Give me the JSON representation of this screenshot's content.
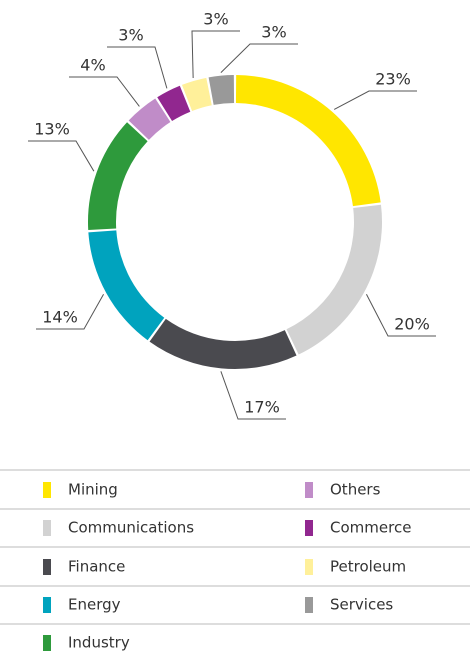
{
  "chart_data": {
    "type": "donut",
    "categories": [
      "Mining",
      "Communications",
      "Finance",
      "Energy",
      "Industry",
      "Others",
      "Commerce",
      "Petroleum",
      "Services"
    ],
    "values": [
      23,
      20,
      17,
      14,
      13,
      4,
      3,
      3,
      3
    ],
    "value_labels": [
      "23%",
      "20%",
      "17%",
      "14%",
      "13%",
      "4%",
      "3%",
      "3%",
      "3%"
    ],
    "colors": [
      "#ffe600",
      "#d2d2d2",
      "#4a4a4f",
      "#00a3be",
      "#2e9a3c",
      "#c08cc8",
      "#91278f",
      "#fff09a",
      "#999999"
    ]
  }
}
